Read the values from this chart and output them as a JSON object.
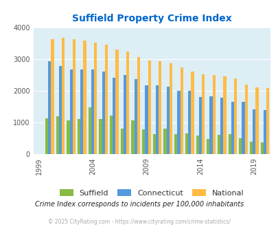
{
  "title": "Suffield Property Crime Index",
  "title_color": "#0066cc",
  "years": [
    2000,
    2001,
    2002,
    2003,
    2004,
    2005,
    2006,
    2007,
    2008,
    2009,
    2010,
    2011,
    2012,
    2013,
    2014,
    2015,
    2016,
    2017,
    2018,
    2019,
    2020
  ],
  "suffield": [
    1130,
    1200,
    1060,
    1110,
    1490,
    1120,
    1230,
    800,
    1060,
    780,
    630,
    800,
    630,
    650,
    600,
    475,
    615,
    640,
    500,
    400,
    380
  ],
  "connecticut": [
    2920,
    2780,
    2680,
    2670,
    2670,
    2600,
    2420,
    2490,
    2360,
    2180,
    2170,
    2140,
    2010,
    1990,
    1810,
    1820,
    1790,
    1650,
    1650,
    1420,
    1400
  ],
  "national": [
    3620,
    3660,
    3620,
    3590,
    3510,
    3450,
    3300,
    3240,
    3060,
    2960,
    2930,
    2870,
    2740,
    2610,
    2510,
    2490,
    2450,
    2400,
    2200,
    2100,
    2080
  ],
  "suffield_color": "#88bb44",
  "connecticut_color": "#5599dd",
  "national_color": "#ffbb44",
  "bg_color": "#ddeef5",
  "ylim": [
    0,
    4000
  ],
  "yticks": [
    0,
    1000,
    2000,
    3000,
    4000
  ],
  "xtick_labels": [
    1999,
    2004,
    2009,
    2014,
    2019
  ],
  "xlim_years": [
    1999,
    2021
  ],
  "note": "Crime Index corresponds to incidents per 100,000 inhabitants",
  "footer": "© 2025 CityRating.com - https://www.cityrating.com/crime-statistics/",
  "bar_width": 0.27
}
